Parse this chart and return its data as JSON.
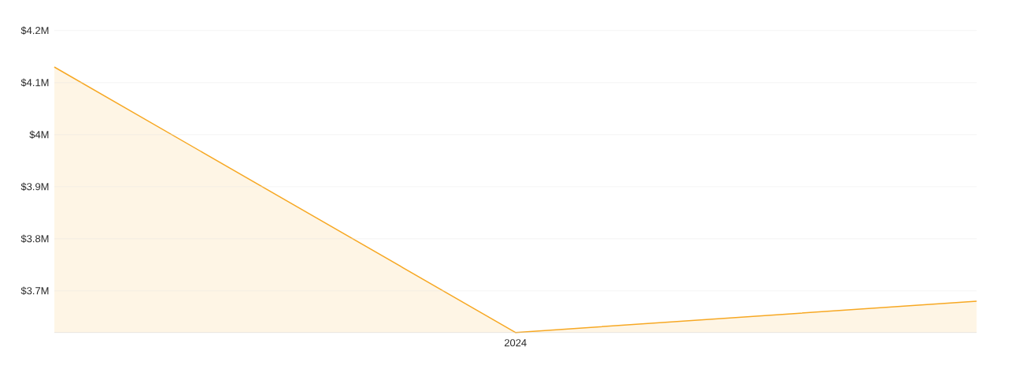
{
  "chart_data": {
    "type": "area",
    "categories": [
      null,
      "2024",
      null
    ],
    "series": [
      {
        "color": "#f7a823",
        "values": [
          4.13,
          3.62,
          3.68
        ]
      }
    ],
    "ylim": [
      3.62,
      4.2
    ],
    "yticks": [
      {
        "value": 3.7,
        "label": "$3.7M"
      },
      {
        "value": 3.8,
        "label": "$3.8M"
      },
      {
        "value": 3.9,
        "label": "$3.9M"
      },
      {
        "value": 4.0,
        "label": "$4M"
      },
      {
        "value": 4.1,
        "label": "$4.1M"
      },
      {
        "value": 4.2,
        "label": "$4.2M"
      }
    ],
    "grid": "y"
  }
}
